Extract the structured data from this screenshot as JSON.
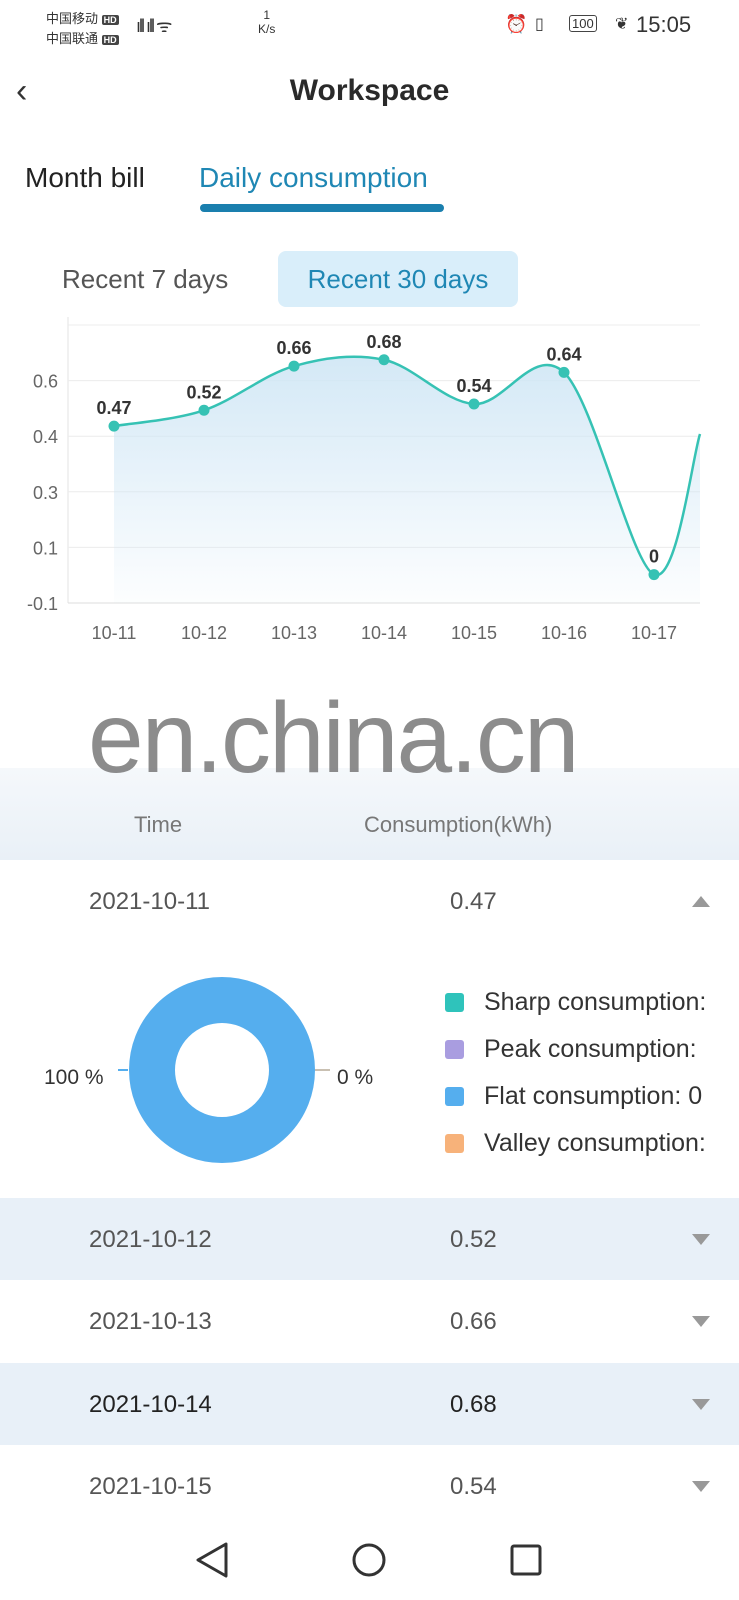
{
  "status_bar": {
    "carrier1": "中国移动",
    "carrier2": "中国联通",
    "hd": "HD",
    "net": "4G",
    "speed": "1",
    "speed_unit": "K/s",
    "battery": "100",
    "time": "15:05"
  },
  "header": {
    "title": "Workspace"
  },
  "tabs": [
    {
      "label": "Month bill",
      "active": false
    },
    {
      "label": "Daily consumption",
      "active": true
    }
  ],
  "range": [
    {
      "label": "Recent 7 days",
      "active": false
    },
    {
      "label": "Recent 30 days",
      "active": true
    }
  ],
  "colors": {
    "accent": "#1a7fae",
    "line": "#36c2b4",
    "flat": "#55aeee",
    "sharp": "#2fc3bb",
    "peak": "#a99de0",
    "valley": "#f7b27a"
  },
  "chart_data": {
    "type": "line",
    "categories": [
      "10-11",
      "10-12",
      "10-13",
      "10-14",
      "10-15",
      "10-16",
      "10-17"
    ],
    "values": [
      0.47,
      0.52,
      0.66,
      0.68,
      0.54,
      0.64,
      0
    ],
    "data_labels": [
      "0.47",
      "0.52",
      "0.66",
      "0.68",
      "0.54",
      "0.64",
      "0"
    ],
    "ytick_labels": [
      "0.6",
      "0.4",
      "0.3",
      "0.1",
      "-0.1"
    ],
    "ylim": [
      -0.09,
      0.79
    ],
    "grid": true
  },
  "watermark": "en.china.cn",
  "table": {
    "headers": [
      "Time",
      "Consumption(kWh)"
    ],
    "rows": [
      {
        "date": "2021-10-11",
        "value": "0.47",
        "expanded": true
      },
      {
        "date": "2021-10-12",
        "value": "0.52"
      },
      {
        "date": "2021-10-13",
        "value": "0.66"
      },
      {
        "date": "2021-10-14",
        "value": "0.68"
      },
      {
        "date": "2021-10-15",
        "value": "0.54"
      }
    ]
  },
  "detail": {
    "pie": [
      {
        "name": "Flat",
        "percent": 100
      },
      {
        "name": "Other",
        "percent": 0
      }
    ],
    "left_label": "100 %",
    "right_label": "0 %",
    "legend": [
      {
        "label": "Sharp consumption:"
      },
      {
        "label": "Peak consumption:"
      },
      {
        "label": "Flat consumption:  0"
      },
      {
        "label": "Valley consumption:"
      }
    ]
  }
}
